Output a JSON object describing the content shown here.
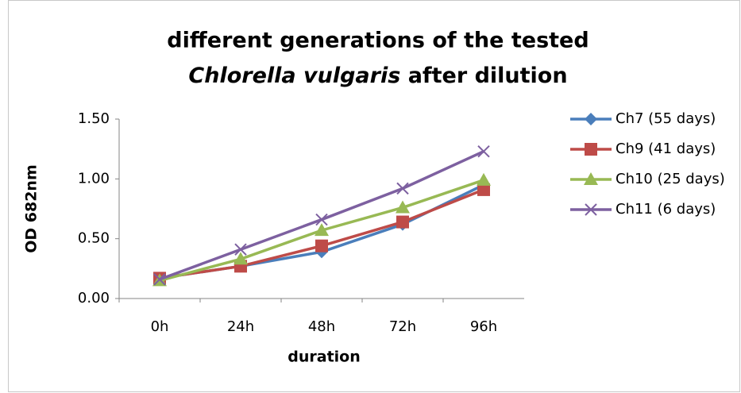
{
  "chart_data": {
    "type": "line",
    "title": [
      "different generations of the tested",
      "Chlorella vulgaris",
      "after dilution"
    ],
    "x_label": "duration",
    "y_label": "OD 682nm",
    "categories": [
      "0h",
      "24h",
      "48h",
      "72h",
      "96h"
    ],
    "ylim": [
      0,
      1.5
    ],
    "yticks": [
      {
        "value": 0,
        "label": "0.00"
      },
      {
        "value": 0.5,
        "label": "0.50"
      },
      {
        "value": 1,
        "label": "1.00"
      },
      {
        "value": 1.5,
        "label": "1.50"
      }
    ],
    "legend": "right",
    "series": [
      {
        "name": "Ch7 (55 days)",
        "color": "#4a7ebb",
        "marker": "diamond",
        "values": [
          0.17,
          0.27,
          0.39,
          0.62,
          0.95
        ]
      },
      {
        "name": "Ch9 (41 days)",
        "color": "#be4b48",
        "marker": "square",
        "values": [
          0.17,
          0.27,
          0.44,
          0.64,
          0.91
        ]
      },
      {
        "name": "Ch10 (25 days)",
        "color": "#98b954",
        "marker": "triangle",
        "values": [
          0.15,
          0.33,
          0.57,
          0.76,
          0.99
        ]
      },
      {
        "name": "Ch11 (6 days)",
        "color": "#7d60a0",
        "marker": "x",
        "values": [
          0.16,
          0.41,
          0.66,
          0.92,
          1.23
        ]
      }
    ]
  }
}
